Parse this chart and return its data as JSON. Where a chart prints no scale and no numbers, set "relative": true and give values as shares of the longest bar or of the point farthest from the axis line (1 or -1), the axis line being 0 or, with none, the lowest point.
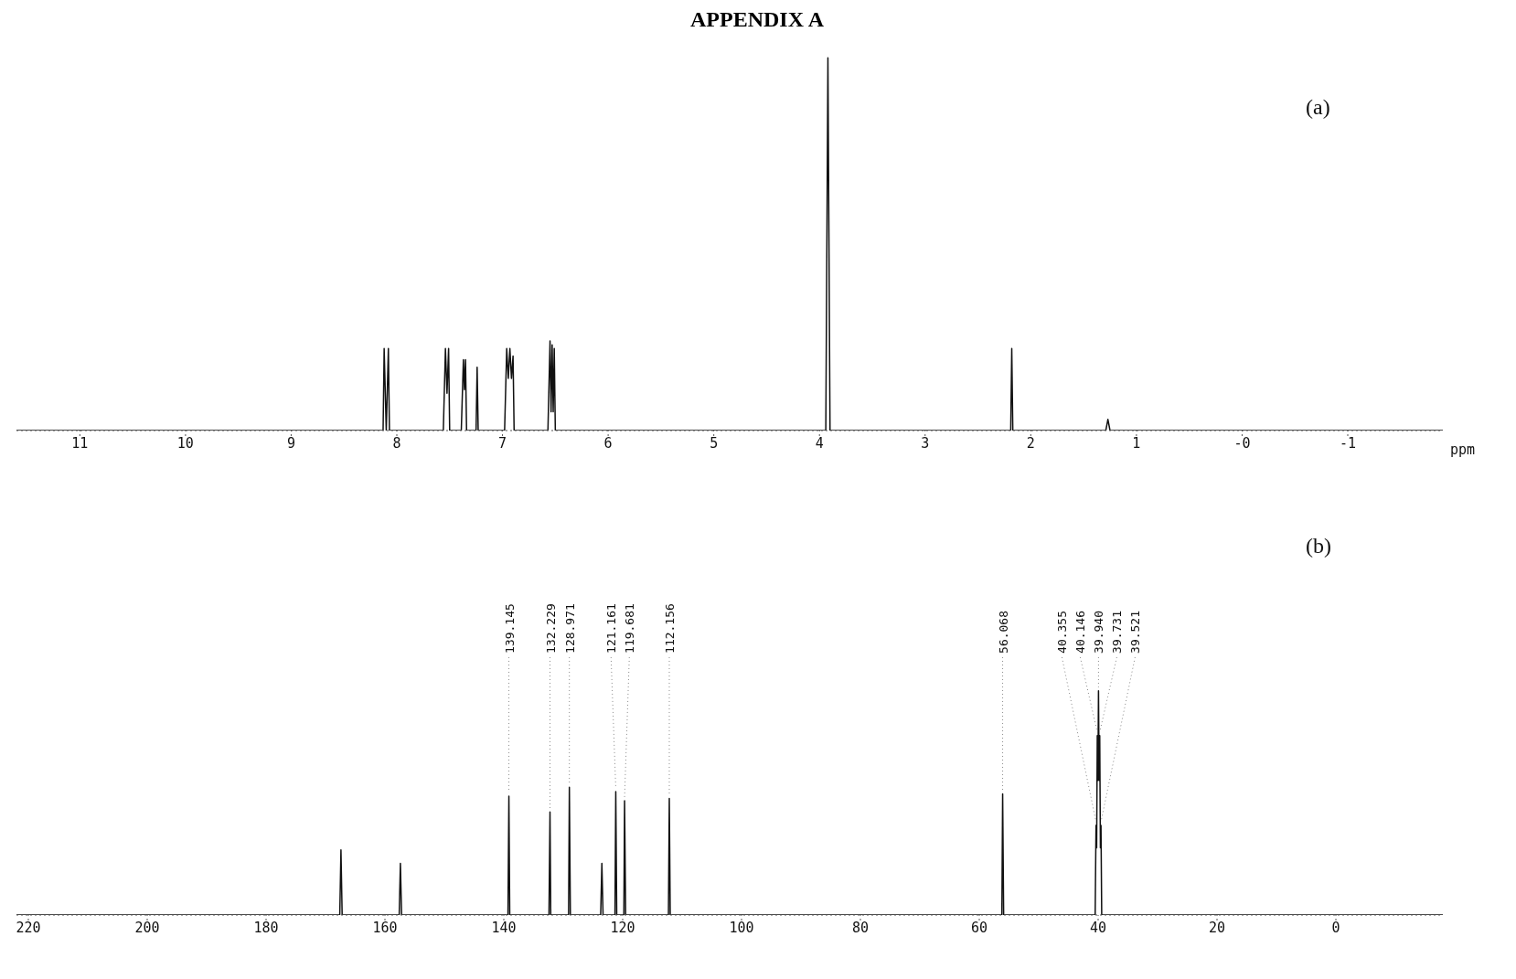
{
  "chart_data": [
    {
      "type": "line",
      "title": "APPENDIX A",
      "relative": true,
      "xlabel": "ppm",
      "annotations": [
        "(a)"
      ],
      "grid": false,
      "marker": "none",
      "xlim": [
        11.6,
        -1.9
      ],
      "xticks": [
        11,
        10,
        9,
        8,
        7,
        6,
        5,
        4,
        3,
        2,
        1,
        {
          "value": 0,
          "label": "-0"
        },
        -1
      ],
      "series": [
        {
          "color": "#111111",
          "x": [
            11.6,
            8.13,
            8.12,
            8.1,
            8.08,
            8.07,
            7.56,
            7.54,
            7.525,
            7.51,
            7.5,
            7.39,
            7.37,
            7.36,
            7.35,
            7.34,
            7.25,
            7.24,
            7.23,
            6.98,
            6.96,
            6.945,
            6.93,
            6.915,
            6.9,
            6.89,
            6.57,
            6.55,
            6.54,
            6.53,
            6.52,
            6.51,
            6.5,
            3.94,
            3.92,
            3.9,
            2.19,
            2.18,
            2.17,
            1.29,
            1.27,
            1.25,
            -1.9
          ],
          "values": [
            0,
            0,
            0.22,
            0,
            0.22,
            0,
            0,
            0.22,
            0.1,
            0.22,
            0,
            0,
            0.19,
            0.11,
            0.19,
            0,
            0,
            0.17,
            0,
            0,
            0.22,
            0.14,
            0.22,
            0.14,
            0.2,
            0,
            0,
            0.24,
            0.05,
            0.23,
            0.05,
            0.22,
            0,
            0,
            1,
            0,
            0,
            0.22,
            0,
            0,
            0.03,
            0,
            0
          ]
        }
      ]
    },
    {
      "type": "line",
      "relative": true,
      "grid": false,
      "marker": "none",
      "xlim": [
        222,
        -18
      ],
      "xticks": [
        220,
        200,
        180,
        160,
        140,
        120,
        100,
        80,
        60,
        40,
        20,
        0
      ],
      "annotations": [
        "(b)",
        {
          "text": "139.145",
          "x": 139.145,
          "y": 0.53
        },
        {
          "text": "132.229",
          "x": 132.229,
          "y": 0.46
        },
        {
          "text": "128.971",
          "x": 128.971,
          "y": 0.57
        },
        {
          "text": "121.161",
          "x": 121.161,
          "y": 0.55
        },
        {
          "text": "119.681",
          "x": 119.681,
          "y": 0.51
        },
        {
          "text": "112.156",
          "x": 112.156,
          "y": 0.52
        },
        {
          "text": "56.068",
          "x": 56.068,
          "y": 0.54
        },
        {
          "text": "40.355",
          "x": 40.355,
          "y": 0.4
        },
        {
          "text": "40.146",
          "x": 40.146,
          "y": 0.8
        },
        {
          "text": "39.940",
          "x": 39.94,
          "y": 1
        },
        {
          "text": "39.731",
          "x": 39.731,
          "y": 0.8
        },
        {
          "text": "39.521",
          "x": 39.521,
          "y": 0.4
        }
      ],
      "series": [
        {
          "color": "#111111",
          "x": [
            222,
            167.6,
            167.4,
            167.2,
            157.6,
            157.4,
            157.2,
            139.3,
            139.145,
            139.0,
            132.4,
            132.229,
            132.1,
            129.1,
            128.971,
            128.8,
            123.7,
            123.5,
            123.3,
            121.3,
            121.161,
            121.0,
            119.8,
            119.681,
            119.5,
            112.3,
            112.156,
            112.0,
            56.2,
            56.068,
            55.9,
            40.5,
            40.355,
            40.25,
            40.146,
            40.04,
            39.94,
            39.83,
            39.731,
            39.62,
            39.521,
            39.4,
            -18
          ],
          "values": [
            0,
            0,
            0.29,
            0,
            0,
            0.23,
            0,
            0,
            0.53,
            0,
            0,
            0.46,
            0,
            0,
            0.57,
            0,
            0,
            0.23,
            0,
            0,
            0.55,
            0,
            0,
            0.51,
            0,
            0,
            0.52,
            0,
            0,
            0.54,
            0,
            0,
            0.4,
            0.3,
            0.8,
            0.6,
            1,
            0.6,
            0.8,
            0.3,
            0.4,
            0,
            0
          ]
        }
      ]
    }
  ]
}
